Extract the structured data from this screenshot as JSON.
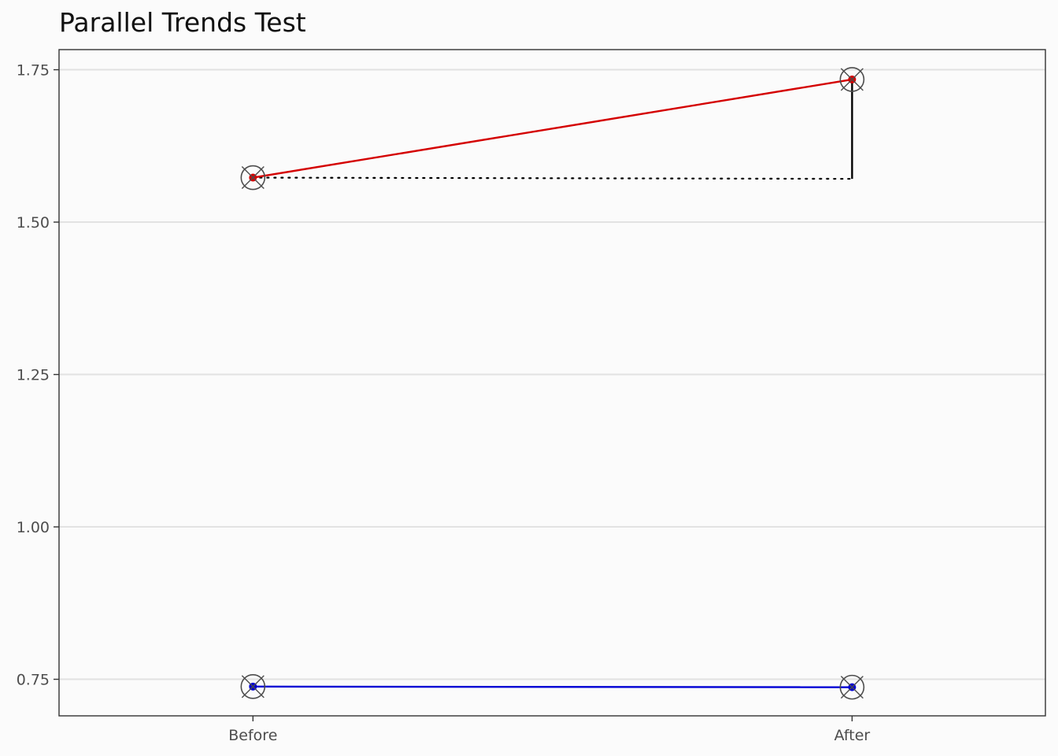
{
  "chart_data": {
    "type": "line",
    "title": "Parallel Trends Test",
    "xlabel": "",
    "ylabel": "",
    "categories": [
      "Before",
      "After"
    ],
    "ylim": [
      0.69,
      1.783
    ],
    "yticks": [
      {
        "value": 0.75,
        "label": "0.75"
      },
      {
        "value": 1.0,
        "label": "1.00"
      },
      {
        "value": 1.25,
        "label": "1.25"
      },
      {
        "value": 1.5,
        "label": "1.50"
      },
      {
        "value": 1.75,
        "label": "1.75"
      }
    ],
    "grid": true,
    "legend": "none",
    "series": [
      {
        "color": "#d40000",
        "values": [
          1.573,
          1.734
        ]
      },
      {
        "color": "#0000d4",
        "values": [
          0.738,
          0.737
        ]
      }
    ],
    "counterfactual": {
      "series_index": 0,
      "value": 1.571,
      "line_color": "#000000",
      "style": "dotted"
    },
    "effect_segment": {
      "category": "After",
      "from": 1.571,
      "to": 1.734,
      "color": "#000000"
    },
    "marker": {
      "shape": "circle-x",
      "color": "#4d4d4d"
    }
  }
}
